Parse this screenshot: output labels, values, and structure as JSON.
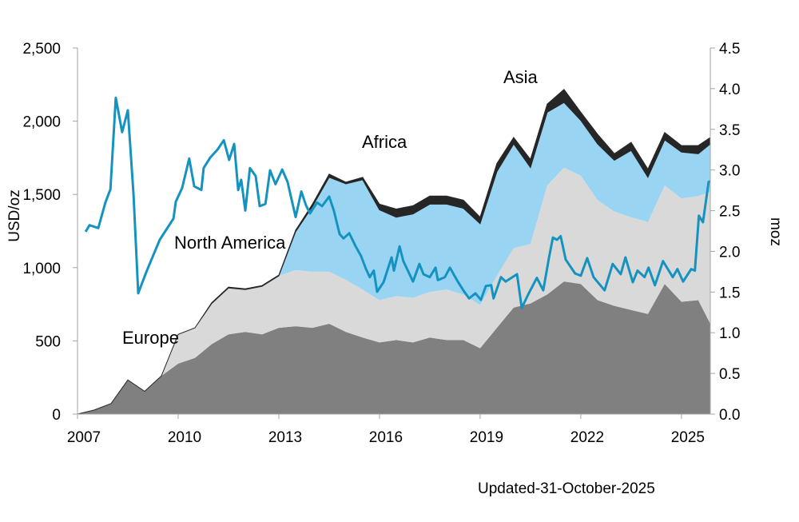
{
  "chart_data": {
    "type": "area",
    "stacked": true,
    "secondary_type": "line",
    "ylabel_left": "USD/oz",
    "ylabel_right": "moz",
    "ylim_left": [
      0,
      2500
    ],
    "ylim_right": [
      0,
      4.5
    ],
    "xlim": [
      2007,
      2025.86
    ],
    "grid": false,
    "left_ticks": [
      "0",
      "500",
      "1,000",
      "1,500",
      "2,000",
      "2,500"
    ],
    "left_tick_values": [
      0,
      500,
      1000,
      1500,
      2000,
      2500
    ],
    "right_ticks": [
      "0.0",
      "0.5",
      "1.0",
      "1.5",
      "2.0",
      "2.5",
      "3.0",
      "3.5",
      "4.0",
      "4.5"
    ],
    "right_tick_values": [
      0,
      0.5,
      1,
      1.5,
      2,
      2.5,
      3,
      3.5,
      4,
      4.5
    ],
    "x_ticks": [
      "2007",
      "2010",
      "2013",
      "2016",
      "2019",
      "2022",
      "2025"
    ],
    "x_tick_values": [
      2007,
      2010,
      2013,
      2016,
      2019,
      2022,
      2025
    ],
    "x": [
      2007.0,
      2007.5,
      2008.0,
      2008.5,
      2009.0,
      2009.5,
      2010.0,
      2010.5,
      2011.0,
      2011.5,
      2012.0,
      2012.5,
      2013.0,
      2013.5,
      2014.0,
      2014.5,
      2015.0,
      2015.5,
      2016.0,
      2016.5,
      2017.0,
      2017.5,
      2018.0,
      2018.5,
      2019.0,
      2019.5,
      2020.0,
      2020.5,
      2021.0,
      2021.5,
      2022.0,
      2022.5,
      2023.0,
      2023.5,
      2024.0,
      2024.5,
      2025.0,
      2025.5,
      2025.86
    ],
    "series": [
      {
        "name": "Europe",
        "axis": "right",
        "color": "#808080",
        "values": [
          0,
          0.05,
          0.13,
          0.42,
          0.28,
          0.47,
          0.62,
          0.69,
          0.86,
          0.98,
          1.01,
          0.98,
          1.06,
          1.08,
          1.06,
          1.11,
          1.01,
          0.94,
          0.88,
          0.91,
          0.88,
          0.94,
          0.91,
          0.91,
          0.81,
          1.06,
          1.31,
          1.36,
          1.47,
          1.63,
          1.6,
          1.4,
          1.33,
          1.28,
          1.23,
          1.6,
          1.38,
          1.4,
          1.11
        ]
      },
      {
        "name": "North America",
        "axis": "right",
        "color": "#d9d9d9",
        "values": [
          0,
          0,
          0,
          0,
          0,
          0,
          0.36,
          0.37,
          0.5,
          0.57,
          0.52,
          0.59,
          0.64,
          0.69,
          0.69,
          0.64,
          0.64,
          0.59,
          0.52,
          0.54,
          0.55,
          0.56,
          0.62,
          0.56,
          0.53,
          0.64,
          0.73,
          0.73,
          1.34,
          1.4,
          1.33,
          1.23,
          1.16,
          1.14,
          1.13,
          1.21,
          1.27,
          1.28,
          1.62
        ]
      },
      {
        "name": "Africa",
        "axis": "right",
        "color": "#99d5f2",
        "values": [
          0,
          0,
          0,
          0,
          0,
          0,
          0,
          0,
          0,
          0,
          0,
          0,
          0,
          0.47,
          0.8,
          1.16,
          1.18,
          1.35,
          1.11,
          0.97,
          1.03,
          1.08,
          1.05,
          1.06,
          1.0,
          1.28,
          1.28,
          0.94,
          0.9,
          0.8,
          0.68,
          0.69,
          0.63,
          0.82,
          0.55,
          0.56,
          0.57,
          0.52,
          0.59
        ]
      },
      {
        "name": "Asia",
        "axis": "right",
        "color": "#262626",
        "values": [
          0,
          0,
          0,
          0,
          0,
          0,
          0,
          0,
          0.01,
          0.01,
          0.01,
          0.01,
          0.01,
          0.02,
          0.03,
          0.04,
          0.02,
          0.03,
          0.07,
          0.1,
          0.1,
          0.1,
          0.1,
          0.1,
          0.08,
          0.1,
          0.08,
          0.1,
          0.1,
          0.16,
          0.1,
          0.12,
          0.08,
          0.1,
          0.1,
          0.09,
          0.08,
          0.1,
          0.08
        ]
      }
    ],
    "line": {
      "axis": "left",
      "color": "#1593c0",
      "x": [
        2007.24,
        2007.36,
        2007.62,
        2007.83,
        2007.98,
        2008.14,
        2008.33,
        2008.5,
        2008.67,
        2008.81,
        2009.05,
        2009.45,
        2009.86,
        2009.93,
        2010.12,
        2010.33,
        2010.48,
        2010.69,
        2010.76,
        2010.95,
        2011.17,
        2011.36,
        2011.52,
        2011.67,
        2011.79,
        2011.88,
        2012.0,
        2012.14,
        2012.31,
        2012.43,
        2012.6,
        2012.74,
        2012.9,
        2013.1,
        2013.26,
        2013.5,
        2013.67,
        2013.81,
        2013.93,
        2014.14,
        2014.29,
        2014.5,
        2014.64,
        2014.81,
        2014.93,
        2015.1,
        2015.29,
        2015.45,
        2015.6,
        2015.71,
        2015.83,
        2015.93,
        2016.12,
        2016.36,
        2016.43,
        2016.6,
        2016.71,
        2017.0,
        2017.19,
        2017.31,
        2017.5,
        2017.67,
        2017.74,
        2017.95,
        2018.1,
        2018.31,
        2018.5,
        2018.67,
        2018.86,
        2019.02,
        2019.17,
        2019.33,
        2019.4,
        2019.62,
        2019.76,
        2020.1,
        2020.24,
        2020.45,
        2020.69,
        2020.88,
        2021.05,
        2021.17,
        2021.29,
        2021.4,
        2021.55,
        2021.83,
        2022.0,
        2022.19,
        2022.38,
        2022.71,
        2022.95,
        2023.19,
        2023.33,
        2023.55,
        2023.69,
        2023.9,
        2024.02,
        2024.21,
        2024.45,
        2024.74,
        2024.88,
        2025.05,
        2025.29,
        2025.4,
        2025.52,
        2025.64,
        2025.81,
        2025.86
      ],
      "values": [
        1245,
        1290,
        1270,
        1445,
        1535,
        2160,
        1925,
        2075,
        1500,
        825,
        970,
        1190,
        1335,
        1450,
        1545,
        1745,
        1555,
        1530,
        1680,
        1750,
        1805,
        1870,
        1735,
        1845,
        1530,
        1600,
        1390,
        1680,
        1625,
        1420,
        1435,
        1665,
        1570,
        1670,
        1585,
        1345,
        1520,
        1425,
        1370,
        1445,
        1420,
        1485,
        1390,
        1230,
        1200,
        1235,
        1145,
        1080,
        990,
        935,
        980,
        835,
        900,
        1070,
        980,
        1145,
        1045,
        905,
        1025,
        955,
        935,
        1000,
        915,
        935,
        1000,
        915,
        845,
        790,
        825,
        780,
        875,
        880,
        790,
        935,
        905,
        955,
        725,
        825,
        930,
        845,
        1065,
        1205,
        1190,
        1215,
        1055,
        960,
        945,
        1065,
        935,
        845,
        1025,
        955,
        1070,
        900,
        980,
        935,
        1000,
        880,
        1045,
        935,
        990,
        905,
        990,
        980,
        1355,
        1310,
        1585,
        1590
      ]
    },
    "annotations": {
      "asia": "Asia",
      "africa": "Africa",
      "north_america": "North America",
      "europe": "Europe"
    }
  },
  "footer": {
    "updated": "Updated-31-October-2025"
  }
}
